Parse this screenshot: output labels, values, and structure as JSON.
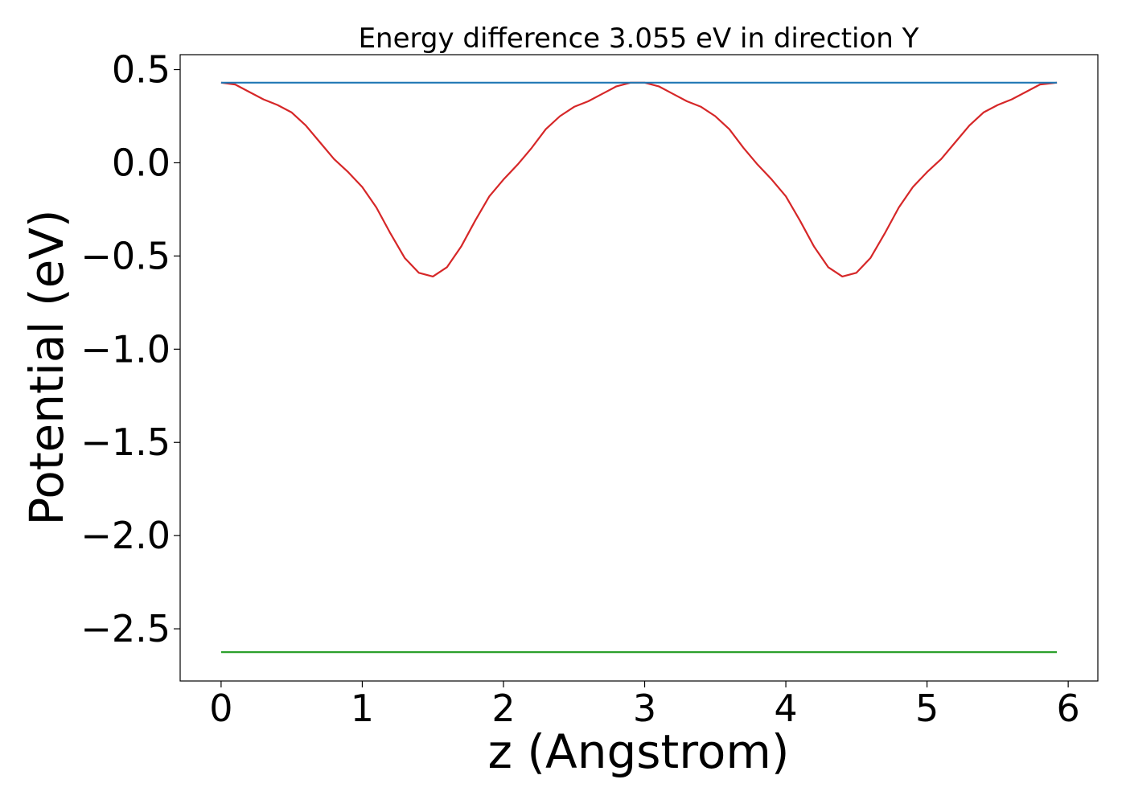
{
  "chart_data": {
    "type": "line",
    "title": "Energy difference 3.055 eV in direction Y",
    "xlabel": "z (Angstrom)",
    "ylabel": "Potential (eV)",
    "xlim": [
      -0.29,
      6.21
    ],
    "ylim": [
      -2.78,
      0.58
    ],
    "xticks": [
      0,
      1,
      2,
      3,
      4,
      5,
      6
    ],
    "xtick_labels": [
      "0",
      "1",
      "2",
      "3",
      "4",
      "5",
      "6"
    ],
    "yticks": [
      0.5,
      0.0,
      -0.5,
      -1.0,
      -1.5,
      -2.0,
      -2.5
    ],
    "ytick_labels": [
      "0.5",
      "0.0",
      "−0.5",
      "−1.0",
      "−1.5",
      "−2.0",
      "−2.5"
    ],
    "grid": false,
    "series": [
      {
        "color": "#d62728",
        "x": [
          0,
          0.1,
          0.2,
          0.3,
          0.4,
          0.5,
          0.6,
          0.7,
          0.8,
          0.9,
          1.0,
          1.1,
          1.2,
          1.3,
          1.4,
          1.5,
          1.6,
          1.7,
          1.8,
          1.9,
          2.0,
          2.1,
          2.2,
          2.3,
          2.4,
          2.5,
          2.6,
          2.7,
          2.8,
          2.9,
          2.96,
          3.0,
          3.1,
          3.2,
          3.3,
          3.4,
          3.5,
          3.6,
          3.7,
          3.8,
          3.9,
          4.0,
          4.1,
          4.2,
          4.3,
          4.4,
          4.5,
          4.6,
          4.7,
          4.8,
          4.9,
          5.0,
          5.1,
          5.2,
          5.3,
          5.4,
          5.5,
          5.6,
          5.7,
          5.8,
          5.92
        ],
        "y": [
          0.43,
          0.42,
          0.38,
          0.34,
          0.31,
          0.27,
          0.2,
          0.11,
          0.02,
          -0.05,
          -0.13,
          -0.24,
          -0.38,
          -0.51,
          -0.59,
          -0.61,
          -0.56,
          -0.45,
          -0.31,
          -0.18,
          -0.09,
          -0.01,
          0.08,
          0.18,
          0.25,
          0.3,
          0.33,
          0.37,
          0.41,
          0.43,
          0.43,
          0.43,
          0.41,
          0.37,
          0.33,
          0.3,
          0.25,
          0.18,
          0.08,
          -0.01,
          -0.09,
          -0.18,
          -0.31,
          -0.45,
          -0.56,
          -0.61,
          -0.59,
          -0.51,
          -0.38,
          -0.24,
          -0.13,
          -0.05,
          0.02,
          0.11,
          0.2,
          0.27,
          0.31,
          0.34,
          0.38,
          0.42,
          0.43
        ]
      },
      {
        "color": "#1f77b4",
        "x": [
          0,
          5.92
        ],
        "y": [
          0.43,
          0.43
        ]
      },
      {
        "color": "#2ca02c",
        "x": [
          0,
          5.92
        ],
        "y": [
          -2.625,
          -2.625
        ]
      }
    ]
  }
}
